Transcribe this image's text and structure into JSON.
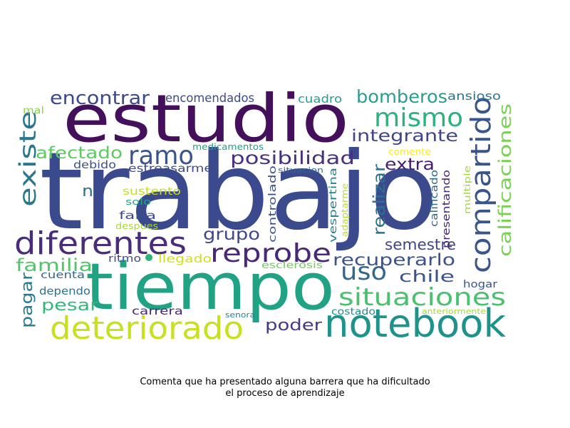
{
  "caption": {
    "line1": "Comenta que ha presentado alguna barrera que ha dificultado",
    "line2": "el proceso de aprendizaje"
  },
  "colors": {
    "background": "#ffffff",
    "text": "#000000"
  },
  "words": [
    {
      "text": "trabajo",
      "color": "#3b4a8c"
    },
    {
      "text": "estudio",
      "color": "#440f5b"
    },
    {
      "text": "tiempo",
      "color": "#20a384"
    },
    {
      "text": "notebook",
      "color": "#1f938b"
    },
    {
      "text": "diferentes",
      "color": "#472d7b"
    },
    {
      "text": "deteriorado",
      "color": "#c8e020"
    },
    {
      "text": "compartido",
      "color": "#39568c"
    },
    {
      "text": "reprobe",
      "color": "#482878"
    },
    {
      "text": "mismo",
      "color": "#2db27d"
    },
    {
      "text": "situaciones",
      "color": "#4ac16d"
    },
    {
      "text": "uso",
      "color": "#31688e"
    },
    {
      "text": "ramo",
      "color": "#3a548c"
    },
    {
      "text": "calificaciones",
      "color": "#7ad151"
    },
    {
      "text": "existe",
      "color": "#2a788e"
    },
    {
      "text": "encontrar",
      "color": "#3e4989"
    },
    {
      "text": "bomberos",
      "color": "#2a9d8f"
    },
    {
      "text": "integrante",
      "color": "#414487"
    },
    {
      "text": "posibilidad",
      "color": "#46327e"
    },
    {
      "text": "recuperarlo",
      "color": "#3b528b"
    },
    {
      "text": "afectado",
      "color": "#5ec962"
    },
    {
      "text": "realizar",
      "color": "#2c718e"
    },
    {
      "text": "familia",
      "color": "#52c569"
    },
    {
      "text": "grupo",
      "color": "#3f4788"
    },
    {
      "text": "semestre",
      "color": "#414487"
    },
    {
      "text": "extra",
      "color": "#482071"
    },
    {
      "text": "chile",
      "color": "#3b528b"
    },
    {
      "text": "pesar",
      "color": "#35b779"
    },
    {
      "text": "poder",
      "color": "#443983"
    },
    {
      "text": "pagar",
      "color": "#2a788e"
    },
    {
      "text": "n",
      "color": "#2c728e"
    },
    {
      "text": "encomendados",
      "color": "#3e4989"
    },
    {
      "text": "cuadro",
      "color": "#2a9d8f"
    },
    {
      "text": "ansioso",
      "color": "#2c738e"
    },
    {
      "text": "mal",
      "color": "#86d549"
    },
    {
      "text": "medicamentos",
      "color": "#1fa187"
    },
    {
      "text": "comente",
      "color": "#fde725"
    },
    {
      "text": "debido",
      "color": "#3b528b"
    },
    {
      "text": "estreasarme",
      "color": "#3e4989"
    },
    {
      "text": "situacion",
      "color": "#31688e"
    },
    {
      "text": "sustento",
      "color": "#c2df23"
    },
    {
      "text": "solo",
      "color": "#22a884"
    },
    {
      "text": "falta",
      "color": "#3e4989"
    },
    {
      "text": "despues",
      "color": "#a5db36"
    },
    {
      "text": "controlado",
      "color": "#3b528b"
    },
    {
      "text": "vespertina",
      "color": "#26828e"
    },
    {
      "text": "adaptarme",
      "color": "#b5de2b"
    },
    {
      "text": "calificado",
      "color": "#31688e"
    },
    {
      "text": "presentando",
      "color": "#482878"
    },
    {
      "text": "multiple",
      "color": "#a0da39"
    },
    {
      "text": "ritmo",
      "color": "#3e4989"
    },
    {
      "text": "llegado",
      "color": "#d0e11c"
    },
    {
      "text": "esclerosis",
      "color": "#6ece58"
    },
    {
      "text": "cuenta",
      "color": "#31688e"
    },
    {
      "text": "dependo",
      "color": "#2c728e"
    },
    {
      "text": "hogar",
      "color": "#3b528b"
    },
    {
      "text": "carrera",
      "color": "#482878"
    },
    {
      "text": "senora",
      "color": "#25848e"
    },
    {
      "text": "costado",
      "color": "#23898e"
    },
    {
      "text": "anteriormente",
      "color": "#9fda3a"
    }
  ]
}
